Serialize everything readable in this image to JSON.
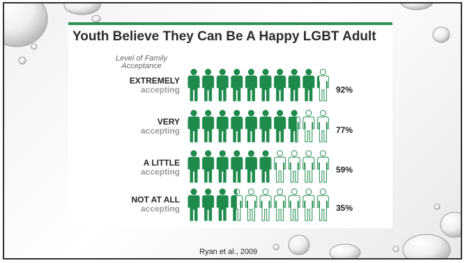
{
  "slide": {
    "caption": "Ryan et al., 2009"
  },
  "chart_data": {
    "type": "pictograph",
    "title": "Youth Believe They Can Be A Happy LGBT Adult",
    "legend_title": "Level of Family Acceptance",
    "icons_per_row": 10,
    "filled_color": "#1e8a4c",
    "empty_color": "#1e8a4c",
    "rows": [
      {
        "label_line1": "EXTREMELY",
        "label_line2": "accepting",
        "value": 92,
        "value_label": "92%"
      },
      {
        "label_line1": "VERY",
        "label_line2": "accepting",
        "value": 77,
        "value_label": "77%"
      },
      {
        "label_line1": "A LITTLE",
        "label_line2": "accepting",
        "value": 59,
        "value_label": "59%"
      },
      {
        "label_line1": "NOT AT ALL",
        "label_line2": "accepting",
        "value": 35,
        "value_label": "35%"
      }
    ]
  }
}
